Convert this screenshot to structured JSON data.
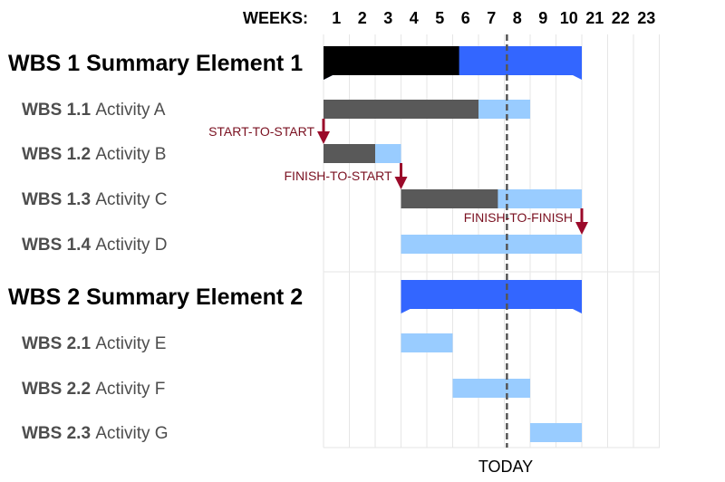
{
  "chart_data": {
    "type": "gantt",
    "weeks_label": "WEEKS:",
    "weeks": [
      "1",
      "2",
      "3",
      "4",
      "5",
      "6",
      "7",
      "8",
      "9",
      "10",
      "21",
      "22",
      "23"
    ],
    "today_label": "TODAY",
    "today_position_weeks": 7.1,
    "rows": [
      {
        "kind": "summary",
        "label": "WBS 1 Summary Element 1",
        "start": 0,
        "end": 10.0,
        "complete_until": 5.25
      },
      {
        "kind": "activity",
        "code": "WBS 1.1",
        "name": "Activity A",
        "start": 0,
        "end": 8.0,
        "complete_until": 6.0
      },
      {
        "kind": "activity",
        "code": "WBS 1.2",
        "name": "Activity B",
        "start": 0,
        "end": 3.0,
        "complete_until": 2.0
      },
      {
        "kind": "activity",
        "code": "WBS 1.3",
        "name": "Activity C",
        "start": 3.0,
        "end": 10.0,
        "complete_until": 6.75
      },
      {
        "kind": "activity",
        "code": "WBS 1.4",
        "name": "Activity D",
        "start": 3.0,
        "end": 10.0,
        "complete_until": 3.0
      },
      {
        "kind": "summary",
        "label": "WBS 2 Summary Element 2",
        "start": 3.0,
        "end": 10.0,
        "complete_until": 3.0
      },
      {
        "kind": "activity",
        "code": "WBS 2.1",
        "name": "Activity E",
        "start": 3.0,
        "end": 5.0,
        "complete_until": 3.0
      },
      {
        "kind": "activity",
        "code": "WBS 2.2",
        "name": "Activity F",
        "start": 5.0,
        "end": 8.0,
        "complete_until": 5.0
      },
      {
        "kind": "activity",
        "code": "WBS 2.3",
        "name": "Activity G",
        "start": 8.0,
        "end": 10.0,
        "complete_until": 8.0
      }
    ],
    "dependencies": [
      {
        "label": "START-TO-START",
        "from_row": 1,
        "to_row": 2,
        "at_week": 0
      },
      {
        "label": "FINISH-TO-START",
        "from_row": 2,
        "to_row": 3,
        "at_week": 3.0
      },
      {
        "label": "FINISH-TO-FINISH",
        "from_row": 3,
        "to_row": 4,
        "at_week": 10.0
      }
    ],
    "colors": {
      "summary_done": "#000000",
      "summary_todo": "#3366ff",
      "activity_done": "#595959",
      "activity_todo": "#99ccff",
      "arrow": "#9b0a2a",
      "grid": "#e6e6e6",
      "today_line": "#555555"
    }
  }
}
